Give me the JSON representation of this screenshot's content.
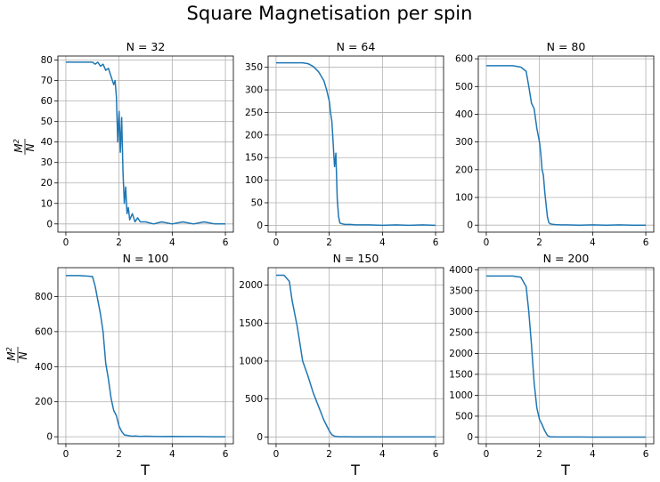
{
  "figure": {
    "title": "Square Magnetisation per spin",
    "ylabel_num": "M",
    "ylabel_sup": "2",
    "ylabel_den": "N",
    "xlabel": "T",
    "series_color": "#1f77b4"
  },
  "chart_data": [
    {
      "type": "line",
      "title": "N = 32",
      "xlim": [
        -0.3,
        6.3
      ],
      "ylim": [
        -4,
        82
      ],
      "xticks": [
        0,
        2,
        4,
        6
      ],
      "yticks": [
        0,
        10,
        20,
        30,
        40,
        50,
        60,
        70,
        80
      ],
      "grid": true,
      "series": [
        {
          "x": [
            0.0,
            0.5,
            1.0,
            1.1,
            1.2,
            1.3,
            1.4,
            1.5,
            1.6,
            1.7,
            1.8,
            1.85,
            1.9,
            1.95,
            2.0,
            2.05,
            2.1,
            2.15,
            2.2,
            2.25,
            2.3,
            2.35,
            2.4,
            2.5,
            2.6,
            2.7,
            2.8,
            3.0,
            3.3,
            3.6,
            4.0,
            4.4,
            4.8,
            5.2,
            5.6,
            6.0
          ],
          "y": [
            79,
            79,
            79,
            78,
            79,
            77,
            78,
            75,
            76,
            72,
            68,
            70,
            62,
            40,
            55,
            35,
            52,
            25,
            10,
            18,
            5,
            8,
            2,
            5,
            1,
            3,
            1,
            1,
            0,
            1,
            0,
            1,
            0,
            1,
            0,
            0
          ]
        }
      ]
    },
    {
      "type": "line",
      "title": "N = 64",
      "xlim": [
        -0.3,
        6.3
      ],
      "ylim": [
        -15,
        375
      ],
      "xticks": [
        0,
        2,
        4,
        6
      ],
      "yticks": [
        0,
        50,
        100,
        150,
        200,
        250,
        300,
        350
      ],
      "grid": true,
      "series": [
        {
          "x": [
            0.0,
            0.5,
            1.0,
            1.2,
            1.4,
            1.6,
            1.8,
            1.9,
            2.0,
            2.05,
            2.1,
            2.15,
            2.2,
            2.25,
            2.3,
            2.35,
            2.4,
            2.5,
            2.6,
            2.8,
            3.0,
            3.5,
            4.0,
            4.5,
            5.0,
            5.5,
            6.0
          ],
          "y": [
            360,
            360,
            360,
            358,
            352,
            340,
            320,
            300,
            275,
            250,
            230,
            180,
            130,
            160,
            60,
            20,
            5,
            3,
            2,
            2,
            1,
            1,
            0,
            1,
            0,
            1,
            0
          ]
        }
      ]
    },
    {
      "type": "line",
      "title": "N = 80",
      "xlim": [
        -0.3,
        6.3
      ],
      "ylim": [
        -25,
        610
      ],
      "xticks": [
        0,
        2,
        4,
        6
      ],
      "yticks": [
        0,
        100,
        200,
        300,
        400,
        500,
        600
      ],
      "grid": true,
      "series": [
        {
          "x": [
            0.0,
            1.0,
            1.3,
            1.5,
            1.6,
            1.7,
            1.8,
            1.9,
            2.0,
            2.05,
            2.1,
            2.15,
            2.2,
            2.3,
            2.35,
            2.4,
            2.5,
            2.6,
            2.8,
            3.0,
            3.5,
            4.0,
            4.5,
            5.0,
            5.5,
            6.0
          ],
          "y": [
            575,
            575,
            570,
            555,
            500,
            440,
            420,
            350,
            300,
            260,
            200,
            180,
            120,
            30,
            10,
            5,
            3,
            2,
            1,
            1,
            0,
            1,
            0,
            1,
            0,
            0
          ]
        }
      ]
    },
    {
      "type": "line",
      "title": "N = 100",
      "xlim": [
        -0.3,
        6.3
      ],
      "ylim": [
        -40,
        965
      ],
      "xticks": [
        0,
        2,
        4,
        6
      ],
      "yticks": [
        0,
        200,
        400,
        600,
        800
      ],
      "grid": true,
      "series": [
        {
          "x": [
            0.0,
            0.5,
            1.0,
            1.1,
            1.2,
            1.3,
            1.4,
            1.5,
            1.6,
            1.7,
            1.8,
            1.9,
            2.0,
            2.1,
            2.2,
            2.3,
            2.4,
            2.5,
            2.6,
            2.8,
            3.0,
            3.5,
            4.0,
            4.5,
            5.0,
            5.5,
            6.0
          ],
          "y": [
            920,
            920,
            915,
            860,
            780,
            700,
            600,
            420,
            330,
            220,
            150,
            120,
            60,
            30,
            10,
            8,
            5,
            3,
            4,
            2,
            3,
            1,
            2,
            1,
            1,
            0,
            0
          ]
        }
      ]
    },
    {
      "type": "line",
      "title": "N = 150",
      "xlim": [
        -0.3,
        6.3
      ],
      "ylim": [
        -90,
        2230
      ],
      "xticks": [
        0,
        2,
        4,
        6
      ],
      "yticks": [
        0,
        500,
        1000,
        1500,
        2000
      ],
      "grid": true,
      "series": [
        {
          "x": [
            0.0,
            0.3,
            0.5,
            0.6,
            0.8,
            1.0,
            1.2,
            1.4,
            1.6,
            1.8,
            2.0,
            2.1,
            2.2,
            2.3,
            2.4,
            2.6,
            3.0,
            3.5,
            4.0,
            4.5,
            5.0,
            5.5,
            6.0
          ],
          "y": [
            2130,
            2130,
            2050,
            1800,
            1450,
            1000,
            800,
            580,
            400,
            220,
            80,
            30,
            10,
            5,
            3,
            2,
            1,
            1,
            0,
            1,
            0,
            0,
            0
          ]
        }
      ]
    },
    {
      "type": "line",
      "title": "N = 200",
      "xlim": [
        -0.3,
        6.3
      ],
      "ylim": [
        -160,
        4050
      ],
      "xticks": [
        0,
        2,
        4,
        6
      ],
      "yticks": [
        0,
        500,
        1000,
        1500,
        2000,
        2500,
        3000,
        3500,
        4000
      ],
      "grid": true,
      "series": [
        {
          "x": [
            0.0,
            1.0,
            1.3,
            1.5,
            1.6,
            1.7,
            1.8,
            1.9,
            2.0,
            2.1,
            2.2,
            2.3,
            2.4,
            2.5,
            2.7,
            3.0,
            3.5,
            4.0,
            4.5,
            5.0,
            5.5,
            6.0
          ],
          "y": [
            3850,
            3850,
            3820,
            3600,
            3000,
            2200,
            1300,
            700,
            420,
            300,
            150,
            40,
            5,
            3,
            2,
            1,
            1,
            0,
            0,
            0,
            0,
            0
          ]
        }
      ]
    }
  ]
}
